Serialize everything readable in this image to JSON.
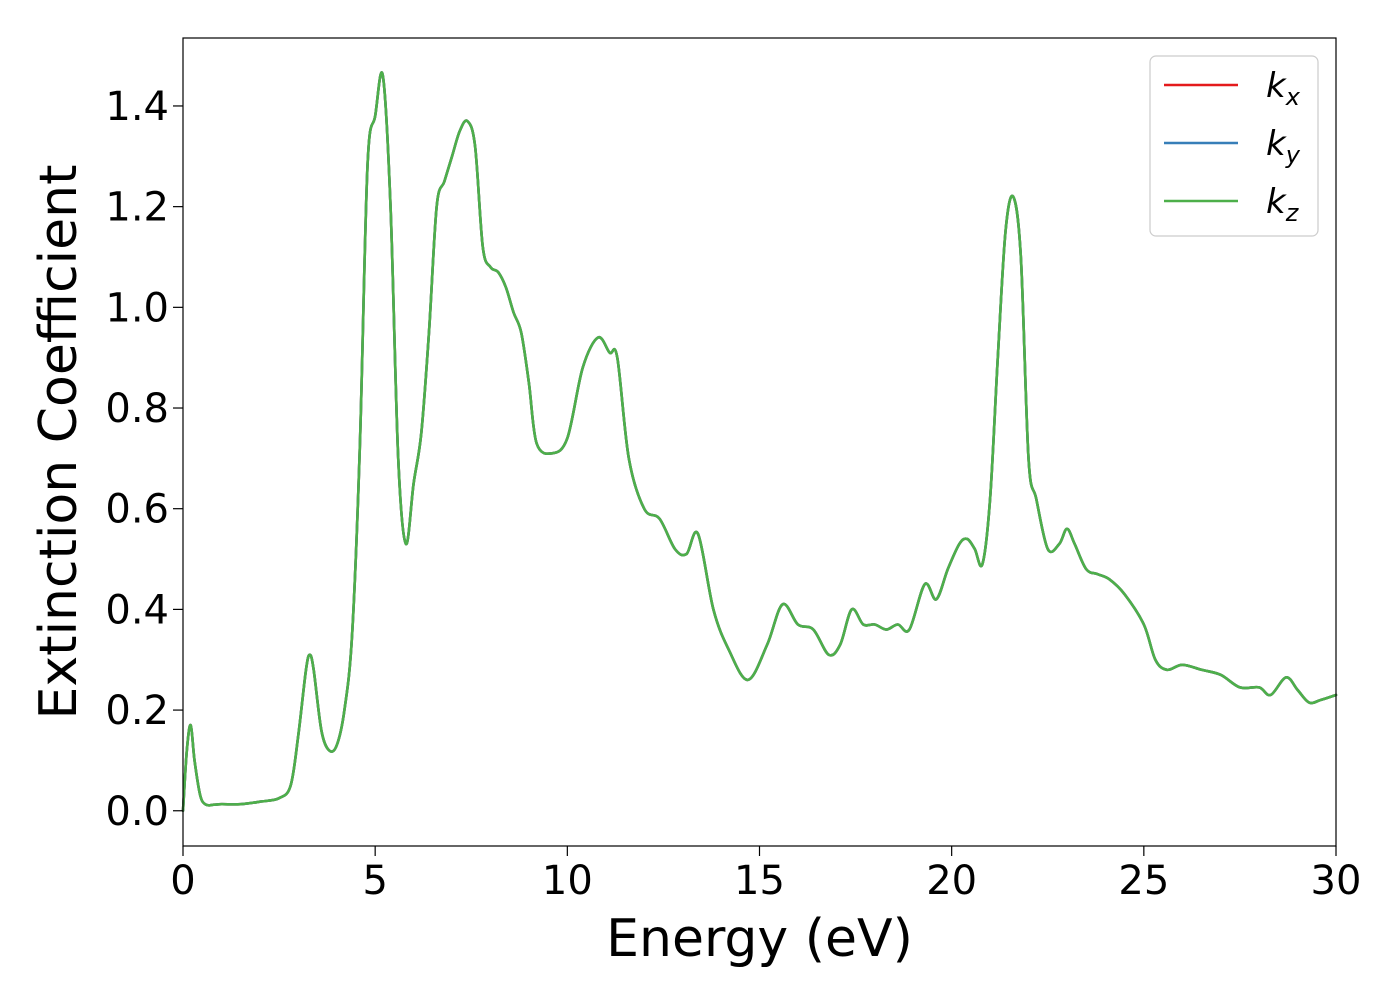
{
  "chart_data": {
    "type": "line",
    "title": "",
    "xlabel": "Energy (eV)",
    "ylabel": "Extinction Coefficient",
    "xlim": [
      0,
      30
    ],
    "ylim": [
      -0.07,
      1.535
    ],
    "xticks": [
      0,
      5,
      10,
      15,
      20,
      25,
      30
    ],
    "yticks": [
      0.0,
      0.2,
      0.4,
      0.6,
      0.8,
      1.0,
      1.2,
      1.4
    ],
    "xtick_labels": [
      "0",
      "5",
      "10",
      "15",
      "20",
      "25",
      "30"
    ],
    "ytick_labels": [
      "0.0",
      "0.2",
      "0.4",
      "0.6",
      "0.8",
      "1.0",
      "1.2",
      "1.4"
    ],
    "grid": false,
    "legend_position": "top-right",
    "series": [
      {
        "name_base": "k",
        "name_sub": "x",
        "color": "#e41a1c",
        "x": [
          0,
          0.1,
          0.2,
          0.3,
          0.45,
          0.6,
          0.8,
          1.0,
          1.5,
          2.0,
          2.5,
          2.8,
          3.0,
          3.2,
          3.3,
          3.4,
          3.6,
          3.8,
          4.0,
          4.2,
          4.4,
          4.6,
          4.8,
          5.0,
          5.2,
          5.4,
          5.6,
          5.8,
          6.0,
          6.2,
          6.4,
          6.6,
          6.8,
          7.0,
          7.2,
          7.4,
          7.6,
          7.8,
          8.0,
          8.2,
          8.4,
          8.6,
          8.8,
          9.0,
          9.2,
          9.6,
          10.0,
          10.4,
          10.8,
          11.1,
          11.3,
          11.6,
          12.0,
          12.4,
          12.8,
          13.1,
          13.4,
          13.8,
          14.2,
          14.7,
          15.2,
          15.6,
          16.0,
          16.4,
          16.8,
          17.1,
          17.4,
          17.7,
          18.0,
          18.3,
          18.6,
          18.9,
          19.3,
          19.6,
          19.9,
          20.2,
          20.4,
          20.6,
          20.8,
          21.0,
          21.2,
          21.4,
          21.6,
          21.8,
          22.0,
          22.2,
          22.5,
          22.8,
          23.0,
          23.2,
          23.5,
          23.8,
          24.1,
          24.5,
          25.0,
          25.3,
          25.6,
          26.0,
          26.5,
          27.0,
          27.5,
          28.0,
          28.3,
          28.7,
          29.0,
          29.3,
          29.6,
          30.0
        ],
        "y": [
          0.0,
          0.12,
          0.17,
          0.1,
          0.03,
          0.012,
          0.012,
          0.013,
          0.013,
          0.018,
          0.025,
          0.05,
          0.15,
          0.28,
          0.31,
          0.28,
          0.16,
          0.12,
          0.13,
          0.2,
          0.35,
          0.72,
          1.28,
          1.38,
          1.46,
          1.2,
          0.7,
          0.53,
          0.65,
          0.75,
          0.95,
          1.2,
          1.25,
          1.3,
          1.35,
          1.37,
          1.32,
          1.12,
          1.08,
          1.07,
          1.04,
          0.99,
          0.95,
          0.85,
          0.73,
          0.71,
          0.74,
          0.88,
          0.94,
          0.91,
          0.9,
          0.7,
          0.6,
          0.58,
          0.52,
          0.51,
          0.55,
          0.4,
          0.32,
          0.26,
          0.33,
          0.41,
          0.37,
          0.36,
          0.31,
          0.33,
          0.4,
          0.37,
          0.37,
          0.36,
          0.37,
          0.36,
          0.45,
          0.42,
          0.48,
          0.53,
          0.54,
          0.52,
          0.49,
          0.62,
          0.9,
          1.15,
          1.22,
          1.1,
          0.7,
          0.62,
          0.52,
          0.53,
          0.56,
          0.53,
          0.48,
          0.47,
          0.46,
          0.43,
          0.37,
          0.3,
          0.28,
          0.29,
          0.28,
          0.27,
          0.245,
          0.245,
          0.23,
          0.265,
          0.24,
          0.215,
          0.22,
          0.23
        ]
      },
      {
        "name_base": "k",
        "name_sub": "y",
        "color": "#377eb8",
        "x": [
          0,
          0.1,
          0.2,
          0.3,
          0.45,
          0.6,
          0.8,
          1.0,
          1.5,
          2.0,
          2.5,
          2.8,
          3.0,
          3.2,
          3.3,
          3.4,
          3.6,
          3.8,
          4.0,
          4.2,
          4.4,
          4.6,
          4.8,
          5.0,
          5.2,
          5.4,
          5.6,
          5.8,
          6.0,
          6.2,
          6.4,
          6.6,
          6.8,
          7.0,
          7.2,
          7.4,
          7.6,
          7.8,
          8.0,
          8.2,
          8.4,
          8.6,
          8.8,
          9.0,
          9.2,
          9.6,
          10.0,
          10.4,
          10.8,
          11.1,
          11.3,
          11.6,
          12.0,
          12.4,
          12.8,
          13.1,
          13.4,
          13.8,
          14.2,
          14.7,
          15.2,
          15.6,
          16.0,
          16.4,
          16.8,
          17.1,
          17.4,
          17.7,
          18.0,
          18.3,
          18.6,
          18.9,
          19.3,
          19.6,
          19.9,
          20.2,
          20.4,
          20.6,
          20.8,
          21.0,
          21.2,
          21.4,
          21.6,
          21.8,
          22.0,
          22.2,
          22.5,
          22.8,
          23.0,
          23.2,
          23.5,
          23.8,
          24.1,
          24.5,
          25.0,
          25.3,
          25.6,
          26.0,
          26.5,
          27.0,
          27.5,
          28.0,
          28.3,
          28.7,
          29.0,
          29.3,
          29.6,
          30.0
        ],
        "y": [
          0.0,
          0.12,
          0.17,
          0.1,
          0.03,
          0.012,
          0.012,
          0.013,
          0.013,
          0.018,
          0.025,
          0.05,
          0.15,
          0.28,
          0.31,
          0.28,
          0.16,
          0.12,
          0.13,
          0.2,
          0.35,
          0.72,
          1.28,
          1.38,
          1.46,
          1.2,
          0.7,
          0.53,
          0.65,
          0.75,
          0.95,
          1.2,
          1.25,
          1.3,
          1.35,
          1.37,
          1.32,
          1.12,
          1.08,
          1.07,
          1.04,
          0.99,
          0.95,
          0.85,
          0.73,
          0.71,
          0.74,
          0.88,
          0.94,
          0.91,
          0.9,
          0.7,
          0.6,
          0.58,
          0.52,
          0.51,
          0.55,
          0.4,
          0.32,
          0.26,
          0.33,
          0.41,
          0.37,
          0.36,
          0.31,
          0.33,
          0.4,
          0.37,
          0.37,
          0.36,
          0.37,
          0.36,
          0.45,
          0.42,
          0.48,
          0.53,
          0.54,
          0.52,
          0.49,
          0.62,
          0.9,
          1.15,
          1.22,
          1.1,
          0.7,
          0.62,
          0.52,
          0.53,
          0.56,
          0.53,
          0.48,
          0.47,
          0.46,
          0.43,
          0.37,
          0.3,
          0.28,
          0.29,
          0.28,
          0.27,
          0.245,
          0.245,
          0.23,
          0.265,
          0.24,
          0.215,
          0.22,
          0.23
        ]
      },
      {
        "name_base": "k",
        "name_sub": "z",
        "color": "#4daf4a",
        "x": [
          0,
          0.1,
          0.2,
          0.3,
          0.45,
          0.6,
          0.8,
          1.0,
          1.5,
          2.0,
          2.5,
          2.8,
          3.0,
          3.2,
          3.3,
          3.4,
          3.6,
          3.8,
          4.0,
          4.2,
          4.4,
          4.6,
          4.8,
          5.0,
          5.2,
          5.4,
          5.6,
          5.8,
          6.0,
          6.2,
          6.4,
          6.6,
          6.8,
          7.0,
          7.2,
          7.4,
          7.6,
          7.8,
          8.0,
          8.2,
          8.4,
          8.6,
          8.8,
          9.0,
          9.2,
          9.6,
          10.0,
          10.4,
          10.8,
          11.1,
          11.3,
          11.6,
          12.0,
          12.4,
          12.8,
          13.1,
          13.4,
          13.8,
          14.2,
          14.7,
          15.2,
          15.6,
          16.0,
          16.4,
          16.8,
          17.1,
          17.4,
          17.7,
          18.0,
          18.3,
          18.6,
          18.9,
          19.3,
          19.6,
          19.9,
          20.2,
          20.4,
          20.6,
          20.8,
          21.0,
          21.2,
          21.4,
          21.6,
          21.8,
          22.0,
          22.2,
          22.5,
          22.8,
          23.0,
          23.2,
          23.5,
          23.8,
          24.1,
          24.5,
          25.0,
          25.3,
          25.6,
          26.0,
          26.5,
          27.0,
          27.5,
          28.0,
          28.3,
          28.7,
          29.0,
          29.3,
          29.6,
          30.0
        ],
        "y": [
          0.0,
          0.12,
          0.17,
          0.1,
          0.03,
          0.012,
          0.012,
          0.013,
          0.013,
          0.018,
          0.025,
          0.05,
          0.15,
          0.28,
          0.31,
          0.28,
          0.16,
          0.12,
          0.13,
          0.2,
          0.35,
          0.72,
          1.28,
          1.38,
          1.46,
          1.2,
          0.7,
          0.53,
          0.65,
          0.75,
          0.95,
          1.2,
          1.25,
          1.3,
          1.35,
          1.37,
          1.32,
          1.12,
          1.08,
          1.07,
          1.04,
          0.99,
          0.95,
          0.85,
          0.73,
          0.71,
          0.74,
          0.88,
          0.94,
          0.91,
          0.9,
          0.7,
          0.6,
          0.58,
          0.52,
          0.51,
          0.55,
          0.4,
          0.32,
          0.26,
          0.33,
          0.41,
          0.37,
          0.36,
          0.31,
          0.33,
          0.4,
          0.37,
          0.37,
          0.36,
          0.37,
          0.36,
          0.45,
          0.42,
          0.48,
          0.53,
          0.54,
          0.52,
          0.49,
          0.62,
          0.9,
          1.15,
          1.22,
          1.1,
          0.7,
          0.62,
          0.52,
          0.53,
          0.56,
          0.53,
          0.48,
          0.47,
          0.46,
          0.43,
          0.37,
          0.3,
          0.28,
          0.29,
          0.28,
          0.27,
          0.245,
          0.245,
          0.23,
          0.265,
          0.24,
          0.215,
          0.22,
          0.23
        ]
      }
    ]
  }
}
